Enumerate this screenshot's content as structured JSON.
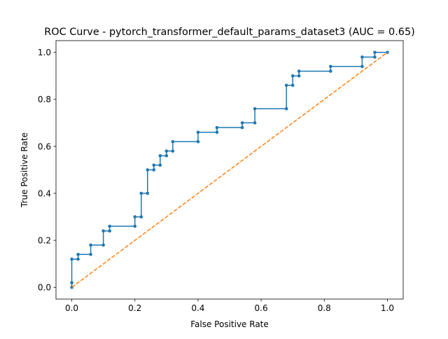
{
  "chart_data": {
    "type": "line",
    "title": "ROC Curve - pytorch_transformer_default_params_dataset3 (AUC = 0.65)",
    "xlabel": "False Positive Rate",
    "ylabel": "True Positive Rate",
    "xlim": [
      -0.05,
      1.05
    ],
    "ylim": [
      -0.05,
      1.05
    ],
    "xticks": [
      0.0,
      0.2,
      0.4,
      0.6,
      0.8,
      1.0
    ],
    "yticks": [
      0.0,
      0.2,
      0.4,
      0.6,
      0.8,
      1.0
    ],
    "xtick_labels": [
      "0.0",
      "0.2",
      "0.4",
      "0.6",
      "0.8",
      "1.0"
    ],
    "ytick_labels": [
      "0.0",
      "0.2",
      "0.4",
      "0.6",
      "0.8",
      "1.0"
    ],
    "grid": false,
    "legend": "none",
    "series": [
      {
        "style": "solid",
        "marker": "dot",
        "color": "#1f77b4",
        "x": [
          0.0,
          0.0,
          0.0,
          0.02,
          0.02,
          0.06,
          0.06,
          0.1,
          0.1,
          0.12,
          0.12,
          0.2,
          0.2,
          0.22,
          0.22,
          0.24,
          0.24,
          0.26,
          0.26,
          0.28,
          0.28,
          0.3,
          0.3,
          0.32,
          0.32,
          0.4,
          0.4,
          0.46,
          0.46,
          0.54,
          0.54,
          0.58,
          0.58,
          0.68,
          0.68,
          0.7,
          0.7,
          0.72,
          0.72,
          0.82,
          0.82,
          0.92,
          0.92,
          0.96,
          0.96,
          1.0
        ],
        "y": [
          0.0,
          0.02,
          0.12,
          0.12,
          0.14,
          0.14,
          0.18,
          0.18,
          0.24,
          0.24,
          0.26,
          0.26,
          0.3,
          0.3,
          0.4,
          0.4,
          0.5,
          0.5,
          0.52,
          0.52,
          0.56,
          0.56,
          0.58,
          0.58,
          0.62,
          0.62,
          0.66,
          0.66,
          0.68,
          0.68,
          0.7,
          0.7,
          0.76,
          0.76,
          0.86,
          0.86,
          0.9,
          0.9,
          0.92,
          0.92,
          0.94,
          0.94,
          0.98,
          0.98,
          1.0,
          1.0
        ]
      },
      {
        "style": "dashed",
        "color": "#ff7f0e",
        "x": [
          0.0,
          1.0
        ],
        "y": [
          0.0,
          1.0
        ]
      }
    ]
  }
}
